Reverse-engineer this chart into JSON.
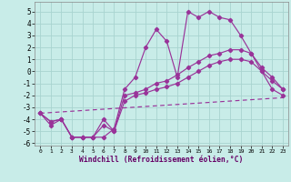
{
  "xlabel": "Windchill (Refroidissement éolien,°C)",
  "bg_color": "#c8ece8",
  "grid_color": "#a8d4d0",
  "line_color": "#993399",
  "xlim": [
    -0.5,
    23.5
  ],
  "ylim": [
    -6.2,
    5.8
  ],
  "yticks": [
    -6,
    -5,
    -4,
    -3,
    -2,
    -1,
    0,
    1,
    2,
    3,
    4,
    5
  ],
  "xticks": [
    0,
    1,
    2,
    3,
    4,
    5,
    6,
    7,
    8,
    9,
    10,
    11,
    12,
    13,
    14,
    15,
    16,
    17,
    18,
    19,
    20,
    21,
    22,
    23
  ],
  "line1_x": [
    0,
    1,
    2,
    3,
    4,
    5,
    6,
    7,
    8,
    9,
    10,
    11,
    12,
    13,
    14,
    15,
    16,
    17,
    18,
    19,
    20,
    21,
    22,
    23
  ],
  "line1_y": [
    -3.5,
    -4.5,
    -4.0,
    -5.5,
    -5.5,
    -5.5,
    -5.5,
    -4.8,
    -1.5,
    -0.5,
    2.0,
    3.5,
    2.5,
    -0.5,
    5.0,
    4.5,
    5.0,
    4.5,
    4.3,
    3.0,
    1.5,
    0.0,
    -1.5,
    -2.0
  ],
  "line2_x": [
    0,
    1,
    2,
    3,
    4,
    5,
    6,
    7,
    8,
    9,
    10,
    11,
    12,
    13,
    14,
    15,
    16,
    17,
    18,
    19,
    20,
    21,
    22,
    23
  ],
  "line2_y": [
    -3.5,
    -4.2,
    -4.0,
    -5.5,
    -5.5,
    -5.5,
    -4.0,
    -5.0,
    -2.0,
    -1.8,
    -1.5,
    -1.0,
    -0.8,
    -0.3,
    0.3,
    0.8,
    1.3,
    1.5,
    1.8,
    1.8,
    1.5,
    0.3,
    -0.5,
    -1.5
  ],
  "line3_x": [
    0,
    1,
    2,
    3,
    4,
    5,
    6,
    7,
    8,
    9,
    10,
    11,
    12,
    13,
    14,
    15,
    16,
    17,
    18,
    19,
    20,
    21,
    22,
    23
  ],
  "line3_y": [
    -3.5,
    -4.2,
    -4.0,
    -5.5,
    -5.5,
    -5.5,
    -4.5,
    -5.0,
    -2.5,
    -2.0,
    -1.8,
    -1.5,
    -1.3,
    -1.0,
    -0.5,
    0.0,
    0.5,
    0.8,
    1.0,
    1.0,
    0.8,
    0.0,
    -0.8,
    -1.5
  ],
  "line4_x": [
    0,
    23
  ],
  "line4_y": [
    -3.5,
    -2.2
  ]
}
